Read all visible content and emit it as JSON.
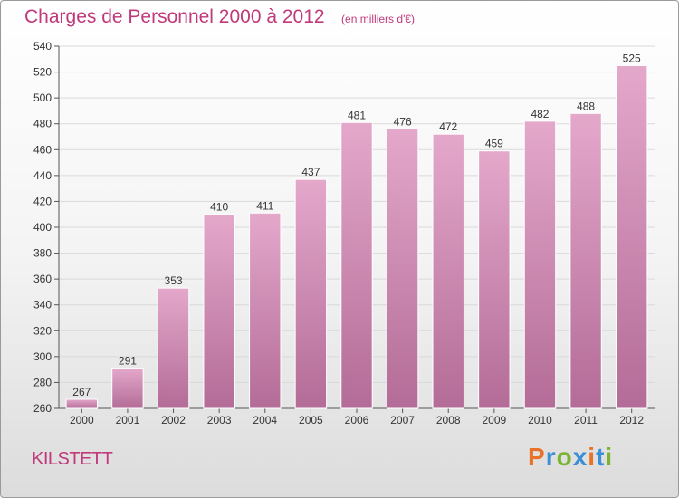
{
  "title": "Charges de Personnel 2000 à 2012",
  "subtitle": "(en milliers d'€)",
  "place": "KILSTETT",
  "logo": {
    "text": "Proxiti",
    "letters": [
      "P",
      "r",
      "o",
      "x",
      "i",
      "t",
      "i"
    ],
    "colors": [
      "#e8722a",
      "#3a8fd6",
      "#7ab432",
      "#3a8fd6",
      "#e8722a",
      "#3a8fd6",
      "#7ab432"
    ]
  },
  "colors": {
    "bar_light": "#e4a8cb",
    "bar_dark": "#b36c97",
    "accent": "#c0397a"
  },
  "chart_data": {
    "type": "bar",
    "title": "Charges de Personnel 2000 à 2012",
    "subtitle": "(en milliers d'€)",
    "xlabel": "",
    "ylabel": "",
    "categories": [
      "2000",
      "2001",
      "2002",
      "2003",
      "2004",
      "2005",
      "2006",
      "2007",
      "2008",
      "2009",
      "2010",
      "2011",
      "2012"
    ],
    "values": [
      267,
      291,
      353,
      410,
      411,
      437,
      481,
      476,
      472,
      459,
      482,
      488,
      525
    ],
    "ylim": [
      260,
      540
    ],
    "yticks": [
      260,
      280,
      300,
      320,
      340,
      360,
      380,
      400,
      420,
      440,
      460,
      480,
      500,
      520,
      540
    ],
    "grid": true,
    "data_labels": true
  }
}
